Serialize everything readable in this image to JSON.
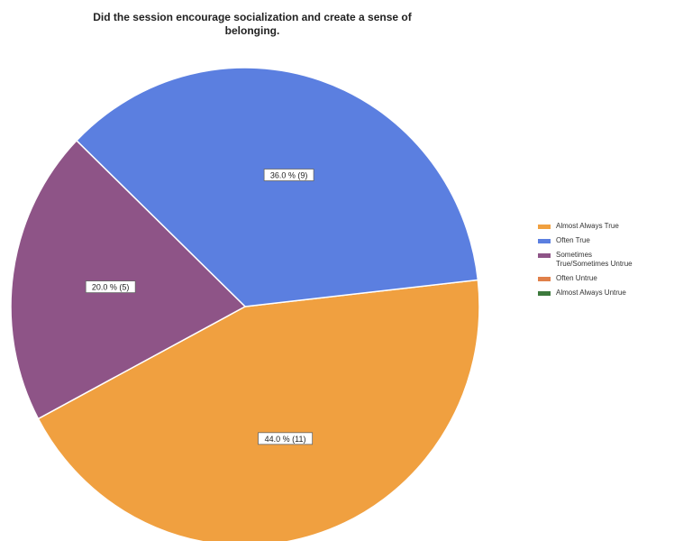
{
  "title_lines": [
    "Did the session encourage socialization and create a sense of",
    "belonging."
  ],
  "chart_data": {
    "type": "pie",
    "title": "Did the session encourage socialization and create a sense of belonging.",
    "legend_position": "right",
    "slices": [
      {
        "name": "Almost Always True",
        "value": 11,
        "percent": 44.0,
        "label": "44.0 % (11)",
        "color": "#F0A040"
      },
      {
        "name": "Often True",
        "value": 9,
        "percent": 36.0,
        "label": "36.0 % (9)",
        "color": "#5B7FE0"
      },
      {
        "name": "Sometimes True/Sometimes Untrue",
        "value": 5,
        "percent": 20.0,
        "label": "20.0 % (5)",
        "color": "#8E5487"
      },
      {
        "name": "Often Untrue",
        "value": 0,
        "percent": 0.0,
        "label": "",
        "color": "#E0804A"
      },
      {
        "name": "Almost Always Untrue",
        "value": 0,
        "percent": 0.0,
        "label": "",
        "color": "#3D7A3D"
      }
    ]
  },
  "legend": [
    {
      "lines": [
        "Almost Always True"
      ],
      "color": "#F0A040"
    },
    {
      "lines": [
        "Often True"
      ],
      "color": "#5B7FE0"
    },
    {
      "lines": [
        "Sometimes",
        "True/Sometimes Untrue"
      ],
      "color": "#8E5487"
    },
    {
      "lines": [
        "Often Untrue"
      ],
      "color": "#E0804A"
    },
    {
      "lines": [
        "Almost Always Untrue"
      ],
      "color": "#3D7A3D"
    }
  ]
}
